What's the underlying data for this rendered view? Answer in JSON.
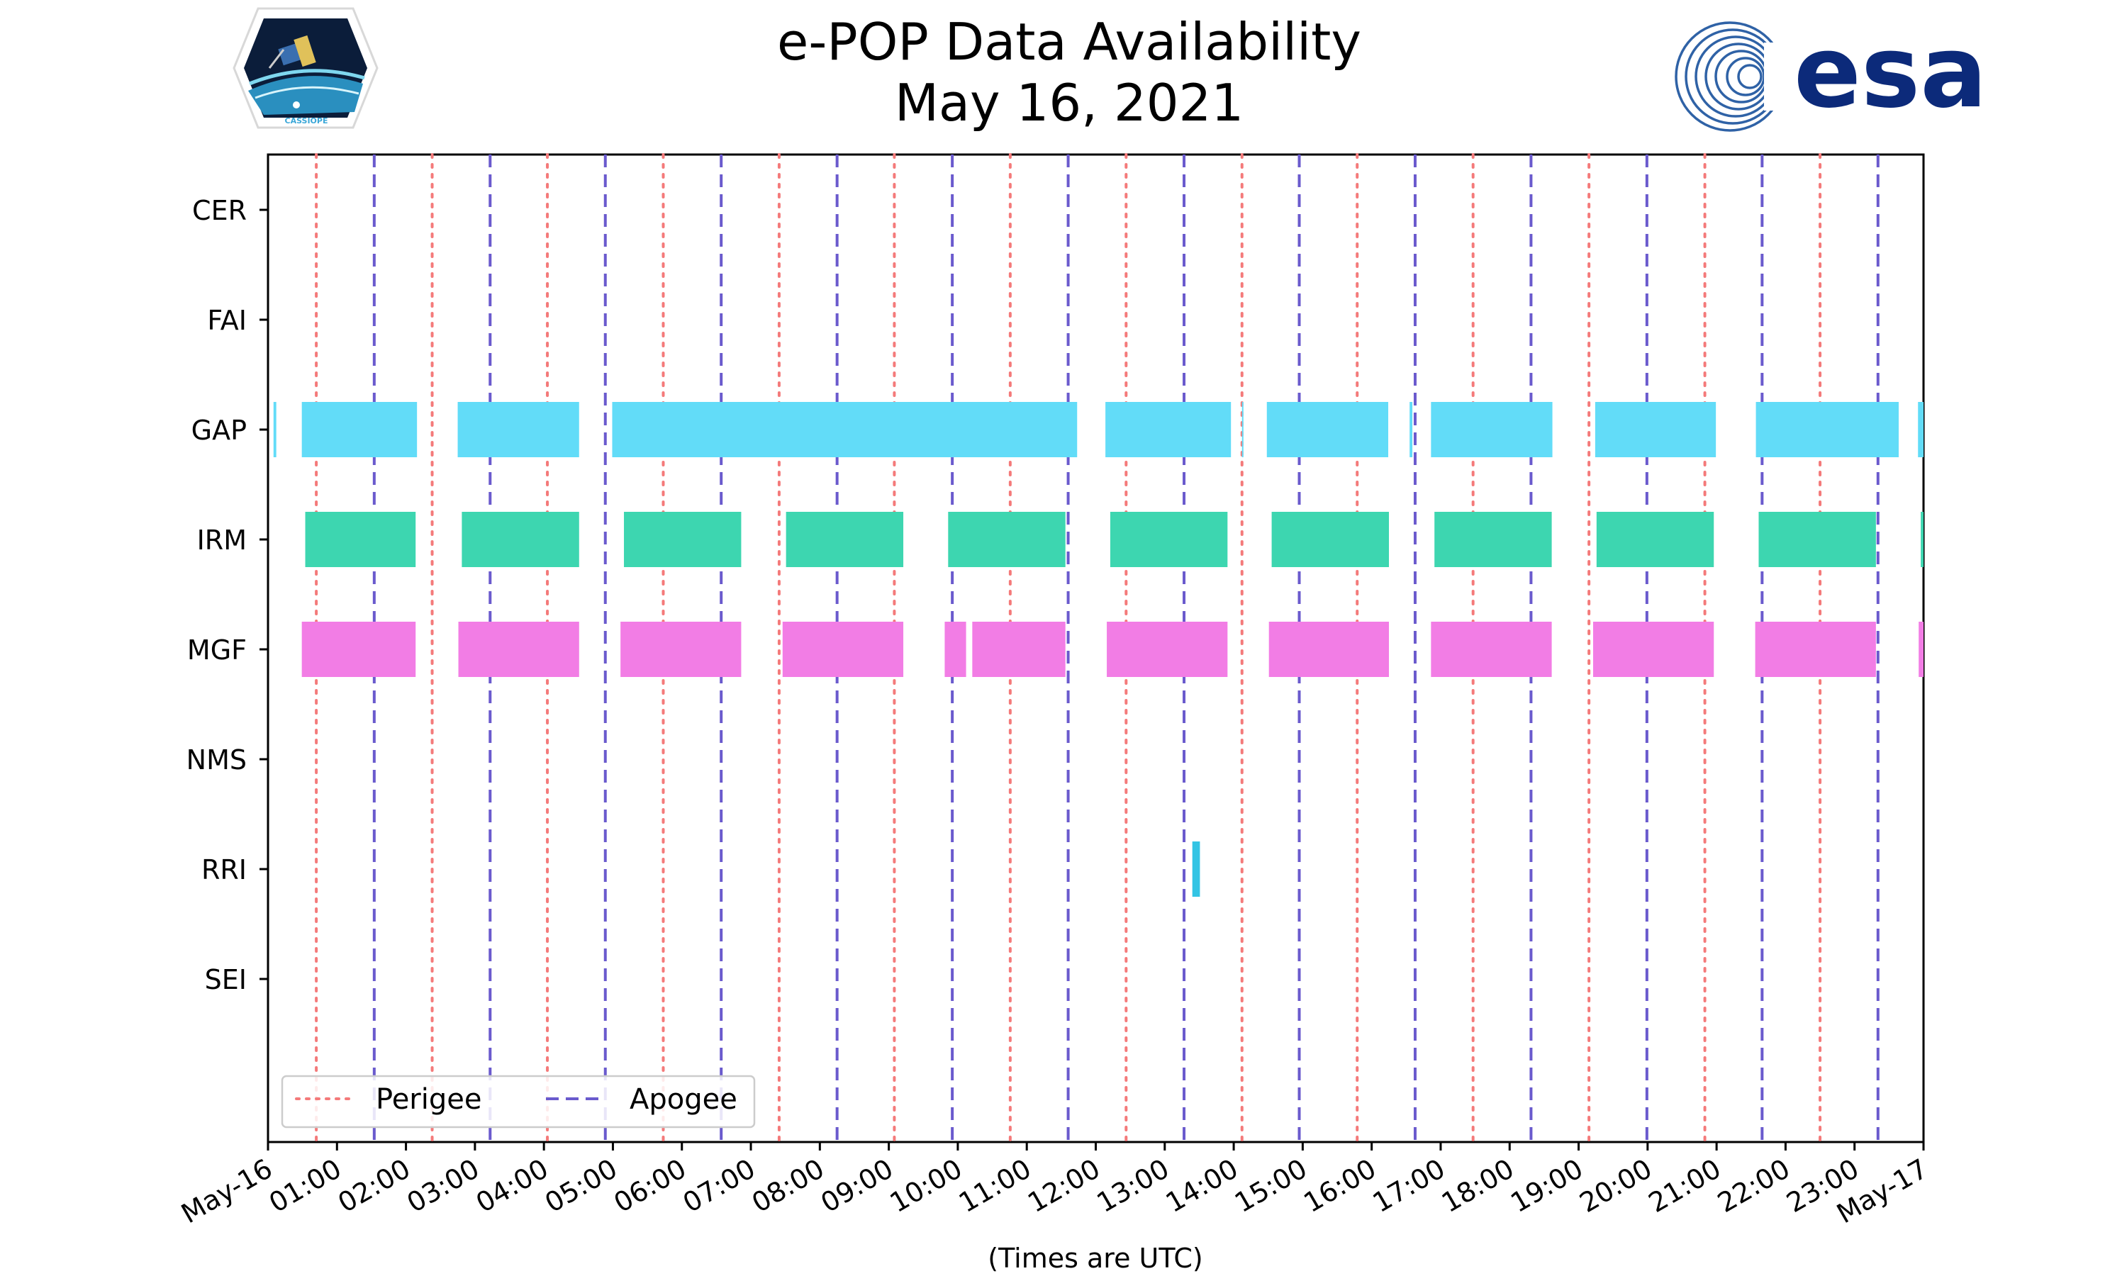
{
  "chart_data": {
    "type": "timeline",
    "title": "e-POP Data Availability",
    "subtitle": "May 16, 2021",
    "xlabel": "(Times are UTC)",
    "ylabel": "",
    "xlim_hours": [
      0,
      24
    ],
    "x_tick_labels": [
      "May-16",
      "01:00",
      "02:00",
      "03:00",
      "04:00",
      "05:00",
      "06:00",
      "07:00",
      "08:00",
      "09:00",
      "10:00",
      "11:00",
      "12:00",
      "13:00",
      "14:00",
      "15:00",
      "16:00",
      "17:00",
      "18:00",
      "19:00",
      "20:00",
      "21:00",
      "22:00",
      "23:00",
      "May-17"
    ],
    "categories": [
      "CER",
      "FAI",
      "GAP",
      "IRM",
      "MGF",
      "NMS",
      "RRI",
      "SEI"
    ],
    "perigee_hours": [
      0.7,
      2.38,
      4.05,
      5.73,
      7.41,
      9.08,
      10.76,
      12.44,
      14.12,
      15.79,
      17.47,
      19.15,
      20.83,
      22.5
    ],
    "apogee_hours": [
      1.54,
      3.22,
      4.89,
      6.57,
      8.25,
      9.92,
      11.6,
      13.28,
      14.95,
      16.63,
      18.31,
      19.99,
      21.66,
      23.34
    ],
    "series": [
      {
        "name": "CER",
        "color": "#4a90e2",
        "intervals": []
      },
      {
        "name": "FAI",
        "color": "#9b59b6",
        "intervals": []
      },
      {
        "name": "GAP",
        "color": "#62dcf8",
        "intervals": [
          [
            0.08,
            0.12
          ],
          [
            0.49,
            2.16
          ],
          [
            2.75,
            4.51
          ],
          [
            4.99,
            11.73
          ],
          [
            12.14,
            13.96
          ],
          [
            14.12,
            14.14
          ],
          [
            14.48,
            16.24
          ],
          [
            16.55,
            16.59
          ],
          [
            16.86,
            18.62
          ],
          [
            19.24,
            20.99
          ],
          [
            21.57,
            23.64
          ],
          [
            23.92,
            24.0
          ]
        ]
      },
      {
        "name": "IRM",
        "color": "#3dd6b0",
        "intervals": [
          [
            0.54,
            2.14
          ],
          [
            2.81,
            4.51
          ],
          [
            5.16,
            6.86
          ],
          [
            7.51,
            9.21
          ],
          [
            9.86,
            11.56
          ],
          [
            12.21,
            13.91
          ],
          [
            14.55,
            16.25
          ],
          [
            16.91,
            18.61
          ],
          [
            19.26,
            20.96
          ],
          [
            21.61,
            23.31
          ],
          [
            23.96,
            24.0
          ]
        ]
      },
      {
        "name": "MGF",
        "color": "#f27de5",
        "intervals": [
          [
            0.49,
            2.14
          ],
          [
            2.76,
            4.51
          ],
          [
            5.11,
            6.86
          ],
          [
            7.46,
            9.21
          ],
          [
            9.81,
            10.12
          ],
          [
            10.21,
            11.56
          ],
          [
            12.16,
            13.91
          ],
          [
            14.51,
            16.25
          ],
          [
            16.86,
            18.61
          ],
          [
            19.21,
            20.96
          ],
          [
            21.56,
            23.31
          ],
          [
            23.93,
            24.0
          ]
        ]
      },
      {
        "name": "NMS",
        "color": "#f0a500",
        "intervals": []
      },
      {
        "name": "RRI",
        "color": "#33c4e4",
        "intervals": [
          [
            13.4,
            13.51
          ]
        ]
      },
      {
        "name": "SEI",
        "color": "#8bc34a",
        "intervals": []
      }
    ],
    "legend": {
      "position": "lower-left",
      "entries": [
        {
          "label": "Perigee",
          "style": "dotted",
          "color": "#f47a7a"
        },
        {
          "label": "Apogee",
          "style": "dashed",
          "color": "#6a5acd"
        }
      ]
    }
  },
  "logos": {
    "cassiope_text": "CASSIOPE",
    "esa_text": "esa"
  }
}
